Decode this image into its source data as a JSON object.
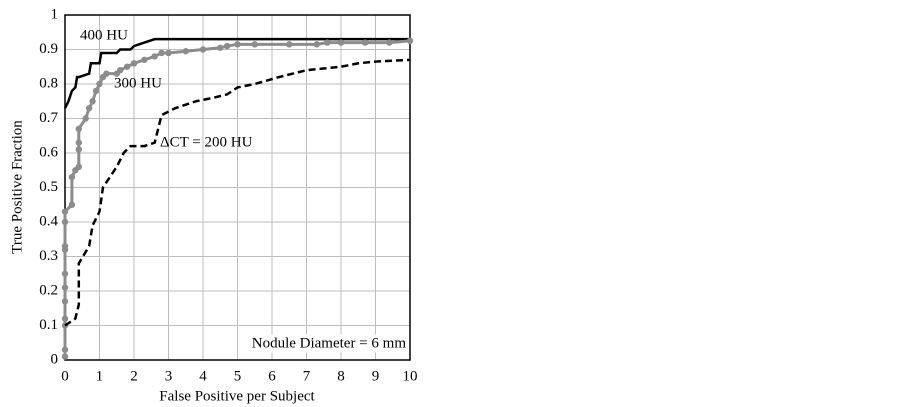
{
  "chart_data": {
    "type": "line",
    "xlabel": "False Positive per Subject",
    "ylabel": "True Positive Fraction",
    "annotations": [
      "Nodule Diameter = 6 mm"
    ],
    "xlim": [
      0,
      10
    ],
    "xticks": [
      0,
      1,
      2,
      3,
      4,
      5,
      6,
      7,
      8,
      9,
      10
    ],
    "ylim": [
      0,
      1
    ],
    "yticks": [
      0,
      0.1,
      0.2,
      0.3,
      0.4,
      0.5,
      0.6,
      0.7,
      0.8,
      0.9,
      1
    ],
    "grid": true,
    "series": [
      {
        "name": "400 HU",
        "color": "#000000",
        "dashed": false,
        "markers": false,
        "x": [
          0,
          0.1,
          0.2,
          0.3,
          0.35,
          0.4,
          0.7,
          0.75,
          1.0,
          1.05,
          1.5,
          1.6,
          1.9,
          2.0,
          2.3,
          2.6,
          10
        ],
        "values": [
          0.73,
          0.75,
          0.78,
          0.79,
          0.82,
          0.82,
          0.83,
          0.86,
          0.86,
          0.89,
          0.89,
          0.9,
          0.9,
          0.91,
          0.92,
          0.93,
          0.93
        ]
      },
      {
        "name": "300 HU",
        "color": "#8c8c8c",
        "dashed": false,
        "markers": true,
        "x": [
          0,
          0,
          0,
          0,
          0,
          0,
          0,
          0,
          0,
          0,
          0,
          0.2,
          0.2,
          0.3,
          0.4,
          0.4,
          0.4,
          0.4,
          0.6,
          0.7,
          0.8,
          0.9,
          1.0,
          1.1,
          1.2,
          1.5,
          1.6,
          1.8,
          2.0,
          2.3,
          2.6,
          2.8,
          3.0,
          3.5,
          4.0,
          4.5,
          4.7,
          5.0,
          5.5,
          6.5,
          7.3,
          7.6,
          8.0,
          8.7,
          9.4,
          10
        ],
        "values": [
          0.01,
          0.03,
          0.1,
          0.12,
          0.17,
          0.21,
          0.25,
          0.32,
          0.33,
          0.4,
          0.43,
          0.45,
          0.53,
          0.55,
          0.56,
          0.61,
          0.63,
          0.67,
          0.7,
          0.73,
          0.75,
          0.78,
          0.8,
          0.82,
          0.83,
          0.83,
          0.84,
          0.85,
          0.86,
          0.87,
          0.88,
          0.89,
          0.89,
          0.895,
          0.9,
          0.905,
          0.91,
          0.915,
          0.915,
          0.915,
          0.915,
          0.92,
          0.92,
          0.92,
          0.92,
          0.925
        ]
      },
      {
        "name": "ΔCT = 200 HU",
        "color": "#000000",
        "dashed": true,
        "markers": false,
        "x": [
          0,
          0.3,
          0.4,
          0.4,
          0.7,
          0.8,
          1.0,
          1.1,
          1.3,
          1.5,
          1.7,
          1.9,
          2.3,
          2.6,
          2.7,
          2.8,
          3.2,
          3.8,
          4.3,
          4.7,
          5.0,
          5.5,
          6.2,
          7.0,
          8.0,
          8.5,
          9.0,
          10
        ],
        "values": [
          0.1,
          0.12,
          0.16,
          0.28,
          0.33,
          0.39,
          0.43,
          0.5,
          0.53,
          0.56,
          0.6,
          0.62,
          0.62,
          0.63,
          0.67,
          0.71,
          0.73,
          0.75,
          0.76,
          0.77,
          0.79,
          0.8,
          0.82,
          0.84,
          0.85,
          0.86,
          0.865,
          0.87
        ]
      }
    ]
  }
}
